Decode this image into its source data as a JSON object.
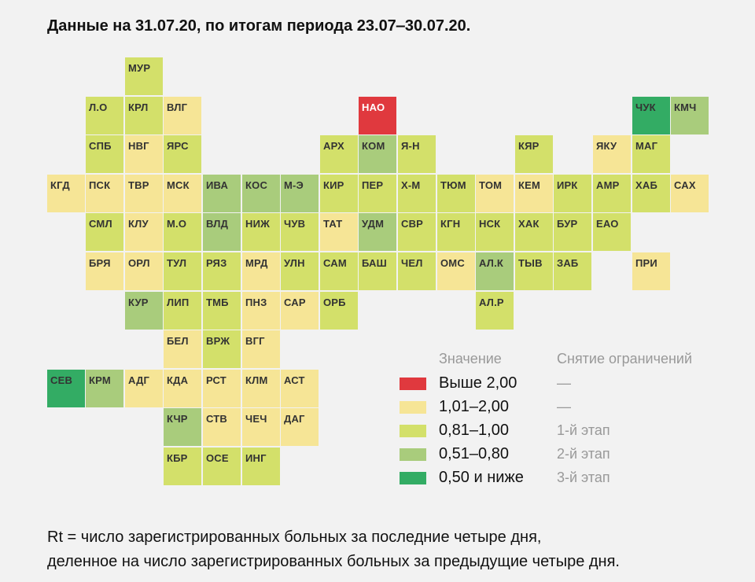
{
  "title": "Данные на 31.07.20, по итогам периода 23.07‒30.07.20.",
  "colors": {
    "red": "#e0393e",
    "yellow": "#f6e596",
    "lgreen": "#d3e06a",
    "mgreen": "#a9cc7c",
    "dgreen": "#33ac64",
    "background": "#f2f2f2"
  },
  "regions": [
    {
      "code": "МУР",
      "row": 0,
      "col": 3,
      "cat": "lgreen"
    },
    {
      "code": "Л.О",
      "row": 1,
      "col": 2,
      "cat": "lgreen"
    },
    {
      "code": "КРЛ",
      "row": 1,
      "col": 3,
      "cat": "lgreen"
    },
    {
      "code": "ВЛГ",
      "row": 1,
      "col": 4,
      "cat": "yellow"
    },
    {
      "code": "НАО",
      "row": 1,
      "col": 9,
      "cat": "red"
    },
    {
      "code": "ЧУК",
      "row": 1,
      "col": 16,
      "cat": "dgreen"
    },
    {
      "code": "КМЧ",
      "row": 1,
      "col": 17,
      "cat": "mgreen"
    },
    {
      "code": "СПБ",
      "row": 2,
      "col": 2,
      "cat": "lgreen"
    },
    {
      "code": "НВГ",
      "row": 2,
      "col": 3,
      "cat": "yellow"
    },
    {
      "code": "ЯРС",
      "row": 2,
      "col": 4,
      "cat": "lgreen"
    },
    {
      "code": "АРХ",
      "row": 2,
      "col": 8,
      "cat": "lgreen"
    },
    {
      "code": "КОМ",
      "row": 2,
      "col": 9,
      "cat": "mgreen"
    },
    {
      "code": "Я-Н",
      "row": 2,
      "col": 10,
      "cat": "lgreen"
    },
    {
      "code": "КЯР",
      "row": 2,
      "col": 13,
      "cat": "lgreen"
    },
    {
      "code": "ЯКУ",
      "row": 2,
      "col": 15,
      "cat": "yellow"
    },
    {
      "code": "МАГ",
      "row": 2,
      "col": 16,
      "cat": "lgreen"
    },
    {
      "code": "КГД",
      "row": 3,
      "col": 1,
      "cat": "yellow"
    },
    {
      "code": "ПСК",
      "row": 3,
      "col": 2,
      "cat": "yellow"
    },
    {
      "code": "ТВР",
      "row": 3,
      "col": 3,
      "cat": "yellow"
    },
    {
      "code": "МСК",
      "row": 3,
      "col": 4,
      "cat": "yellow"
    },
    {
      "code": "ИВА",
      "row": 3,
      "col": 5,
      "cat": "mgreen"
    },
    {
      "code": "КОС",
      "row": 3,
      "col": 6,
      "cat": "mgreen"
    },
    {
      "code": "М-Э",
      "row": 3,
      "col": 7,
      "cat": "mgreen"
    },
    {
      "code": "КИР",
      "row": 3,
      "col": 8,
      "cat": "lgreen"
    },
    {
      "code": "ПЕР",
      "row": 3,
      "col": 9,
      "cat": "lgreen"
    },
    {
      "code": "Х-М",
      "row": 3,
      "col": 10,
      "cat": "lgreen"
    },
    {
      "code": "ТЮМ",
      "row": 3,
      "col": 11,
      "cat": "lgreen"
    },
    {
      "code": "ТОМ",
      "row": 3,
      "col": 12,
      "cat": "yellow"
    },
    {
      "code": "КЕМ",
      "row": 3,
      "col": 13,
      "cat": "yellow"
    },
    {
      "code": "ИРК",
      "row": 3,
      "col": 14,
      "cat": "lgreen"
    },
    {
      "code": "АМР",
      "row": 3,
      "col": 15,
      "cat": "lgreen"
    },
    {
      "code": "ХАБ",
      "row": 3,
      "col": 16,
      "cat": "lgreen"
    },
    {
      "code": "САХ",
      "row": 3,
      "col": 17,
      "cat": "yellow"
    },
    {
      "code": "СМЛ",
      "row": 4,
      "col": 2,
      "cat": "lgreen"
    },
    {
      "code": "КЛУ",
      "row": 4,
      "col": 3,
      "cat": "yellow"
    },
    {
      "code": "М.О",
      "row": 4,
      "col": 4,
      "cat": "lgreen"
    },
    {
      "code": "ВЛД",
      "row": 4,
      "col": 5,
      "cat": "mgreen"
    },
    {
      "code": "НИЖ",
      "row": 4,
      "col": 6,
      "cat": "lgreen"
    },
    {
      "code": "ЧУВ",
      "row": 4,
      "col": 7,
      "cat": "lgreen"
    },
    {
      "code": "ТАТ",
      "row": 4,
      "col": 8,
      "cat": "yellow"
    },
    {
      "code": "УДМ",
      "row": 4,
      "col": 9,
      "cat": "mgreen"
    },
    {
      "code": "СВР",
      "row": 4,
      "col": 10,
      "cat": "lgreen"
    },
    {
      "code": "КГН",
      "row": 4,
      "col": 11,
      "cat": "lgreen"
    },
    {
      "code": "НСК",
      "row": 4,
      "col": 12,
      "cat": "lgreen"
    },
    {
      "code": "ХАК",
      "row": 4,
      "col": 13,
      "cat": "lgreen"
    },
    {
      "code": "БУР",
      "row": 4,
      "col": 14,
      "cat": "lgreen"
    },
    {
      "code": "ЕАО",
      "row": 4,
      "col": 15,
      "cat": "lgreen"
    },
    {
      "code": "БРЯ",
      "row": 5,
      "col": 2,
      "cat": "yellow"
    },
    {
      "code": "ОРЛ",
      "row": 5,
      "col": 3,
      "cat": "yellow"
    },
    {
      "code": "ТУЛ",
      "row": 5,
      "col": 4,
      "cat": "lgreen"
    },
    {
      "code": "РЯЗ",
      "row": 5,
      "col": 5,
      "cat": "lgreen"
    },
    {
      "code": "МРД",
      "row": 5,
      "col": 6,
      "cat": "yellow"
    },
    {
      "code": "УЛН",
      "row": 5,
      "col": 7,
      "cat": "lgreen"
    },
    {
      "code": "САМ",
      "row": 5,
      "col": 8,
      "cat": "lgreen"
    },
    {
      "code": "БАШ",
      "row": 5,
      "col": 9,
      "cat": "lgreen"
    },
    {
      "code": "ЧЕЛ",
      "row": 5,
      "col": 10,
      "cat": "lgreen"
    },
    {
      "code": "ОМС",
      "row": 5,
      "col": 11,
      "cat": "yellow"
    },
    {
      "code": "АЛ.К",
      "row": 5,
      "col": 12,
      "cat": "mgreen"
    },
    {
      "code": "ТЫВ",
      "row": 5,
      "col": 13,
      "cat": "lgreen"
    },
    {
      "code": "ЗАБ",
      "row": 5,
      "col": 14,
      "cat": "lgreen"
    },
    {
      "code": "ПРИ",
      "row": 5,
      "col": 16,
      "cat": "yellow"
    },
    {
      "code": "КУР",
      "row": 6,
      "col": 3,
      "cat": "mgreen"
    },
    {
      "code": "ЛИП",
      "row": 6,
      "col": 4,
      "cat": "lgreen"
    },
    {
      "code": "ТМБ",
      "row": 6,
      "col": 5,
      "cat": "lgreen"
    },
    {
      "code": "ПНЗ",
      "row": 6,
      "col": 6,
      "cat": "yellow"
    },
    {
      "code": "САР",
      "row": 6,
      "col": 7,
      "cat": "yellow"
    },
    {
      "code": "ОРБ",
      "row": 6,
      "col": 8,
      "cat": "lgreen"
    },
    {
      "code": "АЛ.Р",
      "row": 6,
      "col": 12,
      "cat": "lgreen"
    },
    {
      "code": "БЕЛ",
      "row": 7,
      "col": 4,
      "cat": "yellow"
    },
    {
      "code": "ВРЖ",
      "row": 7,
      "col": 5,
      "cat": "lgreen"
    },
    {
      "code": "ВГГ",
      "row": 7,
      "col": 6,
      "cat": "yellow"
    },
    {
      "code": "СЕВ",
      "row": 8,
      "col": 1,
      "cat": "dgreen"
    },
    {
      "code": "КРМ",
      "row": 8,
      "col": 2,
      "cat": "mgreen"
    },
    {
      "code": "АДГ",
      "row": 8,
      "col": 3,
      "cat": "yellow"
    },
    {
      "code": "КДА",
      "row": 8,
      "col": 4,
      "cat": "yellow"
    },
    {
      "code": "РСТ",
      "row": 8,
      "col": 5,
      "cat": "yellow"
    },
    {
      "code": "КЛМ",
      "row": 8,
      "col": 6,
      "cat": "yellow"
    },
    {
      "code": "АСТ",
      "row": 8,
      "col": 7,
      "cat": "yellow"
    },
    {
      "code": "КЧР",
      "row": 9,
      "col": 4,
      "cat": "mgreen"
    },
    {
      "code": "СТВ",
      "row": 9,
      "col": 5,
      "cat": "yellow"
    },
    {
      "code": "ЧЕЧ",
      "row": 9,
      "col": 6,
      "cat": "yellow"
    },
    {
      "code": "ДАГ",
      "row": 9,
      "col": 7,
      "cat": "yellow"
    },
    {
      "code": "КБР",
      "row": 10,
      "col": 4,
      "cat": "lgreen"
    },
    {
      "code": "ОСЕ",
      "row": 10,
      "col": 5,
      "cat": "lgreen"
    },
    {
      "code": "ИНГ",
      "row": 10,
      "col": 6,
      "cat": "lgreen"
    }
  ],
  "legend": {
    "value_header": "Значение",
    "stage_header": "Снятие ограничений",
    "items": [
      {
        "cat": "red",
        "label": "Выше 2,00",
        "stage": "—"
      },
      {
        "cat": "yellow",
        "label": "1,01‒2,00",
        "stage": "—"
      },
      {
        "cat": "lgreen",
        "label": "0,81‒1,00",
        "stage": "1-й этап"
      },
      {
        "cat": "mgreen",
        "label": "0,51‒0,80",
        "stage": "2-й этап"
      },
      {
        "cat": "dgreen",
        "label": "0,50 и ниже",
        "stage": "3-й этап"
      }
    ]
  },
  "footnote": {
    "line1": "Rt = число зарегистрированных больных за последние четыре дня,",
    "line2": "деленное на число зарегистрированных больных за предыдущие четыре дня."
  }
}
